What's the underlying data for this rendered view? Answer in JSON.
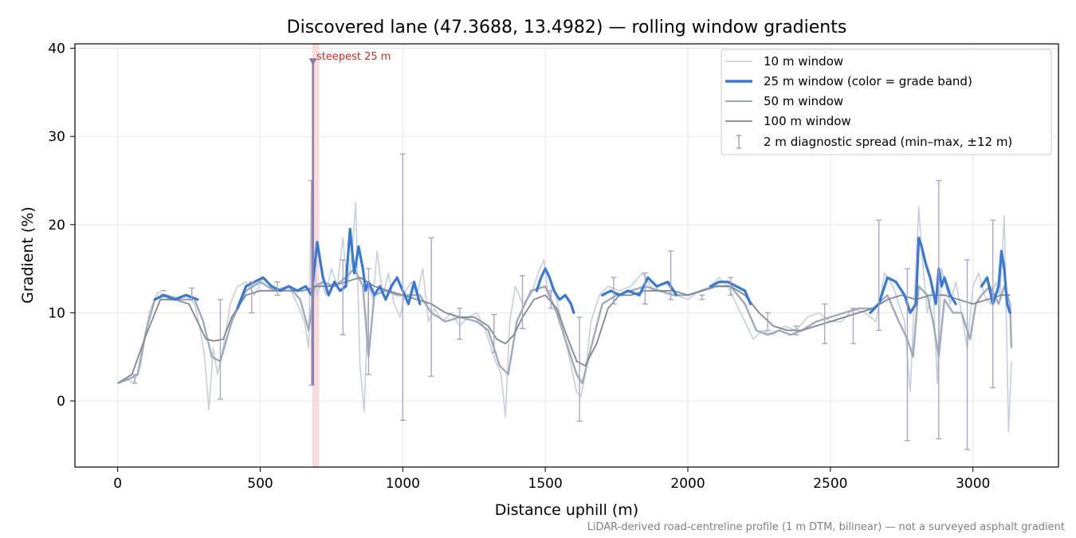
{
  "chart_data": {
    "type": "line",
    "title": "Discovered lane (47.3688, 13.4982) — rolling window gradients",
    "xlabel": "Distance uphill (m)",
    "ylabel": "Gradient (%)",
    "xlim": [
      -150,
      3300
    ],
    "ylim": [
      -7.5,
      40.5
    ],
    "xticks": [
      0,
      500,
      1000,
      1500,
      2000,
      2500,
      3000
    ],
    "yticks": [
      0,
      10,
      20,
      30,
      40
    ],
    "grid": true,
    "legend_position": "upper right",
    "colors": {
      "w10": "#c4cdd8",
      "w25": "#3a78d6",
      "w50": "#9aa7b6",
      "w100": "#7f8891",
      "errorbar": "#a4a0c4",
      "highlight_span": "#f6cfd2",
      "marker": "#8c78ad"
    },
    "series": [
      {
        "name": "10 m window",
        "x": [
          0,
          30,
          55,
          80,
          110,
          140,
          170,
          200,
          240,
          270,
          290,
          305,
          320,
          335,
          350,
          370,
          395,
          420,
          450,
          480,
          510,
          540,
          570,
          600,
          630,
          655,
          670,
          680,
          690,
          700,
          715,
          730,
          750,
          770,
          790,
          805,
          820,
          835,
          850,
          865,
          880,
          895,
          910,
          930,
          950,
          970,
          990,
          1010,
          1030,
          1050,
          1070,
          1090,
          1110,
          1140,
          1170,
          1200,
          1230,
          1260,
          1290,
          1320,
          1345,
          1360,
          1375,
          1395,
          1420,
          1450,
          1475,
          1495,
          1510,
          1530,
          1550,
          1570,
          1590,
          1610,
          1625,
          1640,
          1660,
          1690,
          1720,
          1760,
          1800,
          1840,
          1880,
          1920,
          1960,
          2000,
          2040,
          2080,
          2110,
          2140,
          2170,
          2200,
          2230,
          2260,
          2300,
          2340,
          2380,
          2420,
          2460,
          2500,
          2540,
          2580,
          2620,
          2660,
          2690,
          2720,
          2740,
          2760,
          2780,
          2795,
          2810,
          2820,
          2840,
          2860,
          2875,
          2890,
          2905,
          2920,
          2940,
          2960,
          2980,
          3000,
          3020,
          3040,
          3060,
          3080,
          3095,
          3110,
          3125,
          3135
        ],
        "y": [
          2,
          2.5,
          2,
          4,
          10,
          12.3,
          12,
          11.5,
          12,
          11,
          8,
          5,
          -1,
          6,
          3,
          6,
          11,
          13,
          13.5,
          12,
          14,
          13,
          12.5,
          13,
          11,
          9,
          6,
          25,
          15,
          12,
          13.5,
          12,
          15,
          13,
          18.5,
          13,
          16,
          22.5,
          4,
          -1.2,
          13,
          11.5,
          17,
          12,
          14.5,
          11,
          9.5,
          12.5,
          13.5,
          12,
          15,
          9,
          10.5,
          9,
          10,
          8.5,
          9.5,
          10,
          8,
          5,
          3,
          -1.8,
          9,
          13,
          11,
          12,
          14.5,
          16,
          12,
          13,
          10,
          7,
          4,
          1,
          0.5,
          3,
          9,
          12,
          13,
          12.5,
          13,
          14.5,
          12.5,
          13.5,
          12,
          11.5,
          12.5,
          13,
          14,
          13,
          11,
          9,
          7,
          8,
          7.5,
          8.5,
          8,
          9.5,
          10,
          9,
          9,
          10.5,
          10,
          9,
          14.5,
          13,
          11,
          9,
          1,
          12,
          22,
          17,
          10,
          13,
          2,
          15,
          13,
          11,
          13.5,
          10,
          6,
          13,
          14.5,
          12,
          11,
          13.5,
          12,
          21,
          -3.5,
          4.5
        ]
      },
      {
        "name": "25 m window (color = grade band)",
        "x": [
          130,
          160,
          200,
          240,
          280,
          420,
          450,
          480,
          510,
          540,
          570,
          600,
          630,
          660,
          680,
          690,
          700,
          720,
          740,
          760,
          780,
          800,
          815,
          830,
          845,
          860,
          870,
          880,
          900,
          920,
          940,
          960,
          980,
          1000,
          1020,
          1040,
          1060,
          1470,
          1485,
          1500,
          1515,
          1530,
          1550,
          1570,
          1590,
          1600,
          1700,
          1730,
          1760,
          1790,
          1830,
          1860,
          1890,
          1930,
          1960,
          2080,
          2110,
          2140,
          2170,
          2200,
          2220,
          2640,
          2670,
          2700,
          2730,
          2760,
          2780,
          2800,
          2810,
          2820,
          2835,
          2850,
          2870,
          2880,
          2890,
          2900,
          2920,
          2940,
          3030,
          3050,
          3070,
          3090,
          3100,
          3110,
          3120,
          3130
        ],
        "y": [
          11.5,
          12,
          11.5,
          12,
          11.5,
          10.5,
          13,
          13.5,
          14,
          13,
          12.5,
          13,
          12.5,
          13,
          12,
          15,
          18,
          14,
          12,
          13.5,
          12.5,
          13,
          19.5,
          14.5,
          17.5,
          15,
          12.5,
          13.5,
          12,
          13,
          11.5,
          13,
          14,
          12.5,
          11,
          13.5,
          11,
          12.5,
          14,
          15,
          14,
          12.5,
          11.5,
          12,
          11,
          10,
          12,
          12.5,
          12,
          12.5,
          12,
          14,
          13,
          13.5,
          12,
          13,
          13.5,
          13.5,
          13,
          12.5,
          11,
          10,
          11,
          14,
          13.5,
          12,
          10,
          11,
          18.5,
          17.5,
          15.5,
          14,
          11,
          15,
          13,
          14,
          12,
          11,
          13,
          14,
          11,
          13,
          17,
          15,
          11,
          10
        ]
      },
      {
        "name": "50 m window",
        "x": [
          0,
          40,
          70,
          100,
          130,
          170,
          220,
          270,
          300,
          330,
          360,
          400,
          450,
          500,
          550,
          600,
          640,
          670,
          690,
          720,
          760,
          800,
          830,
          860,
          880,
          900,
          940,
          980,
          1020,
          1060,
          1100,
          1150,
          1200,
          1260,
          1300,
          1340,
          1370,
          1400,
          1450,
          1500,
          1540,
          1580,
          1610,
          1630,
          1660,
          1700,
          1750,
          1800,
          1850,
          1900,
          1950,
          2000,
          2050,
          2100,
          2150,
          2200,
          2240,
          2280,
          2320,
          2360,
          2400,
          2450,
          2500,
          2550,
          2600,
          2650,
          2700,
          2740,
          2770,
          2790,
          2810,
          2840,
          2860,
          2880,
          2900,
          2930,
          2960,
          2990,
          3010,
          3030,
          3060,
          3090,
          3110,
          3130,
          3135
        ],
        "y": [
          2,
          2.5,
          3,
          8,
          11.5,
          12,
          11.5,
          11.5,
          9,
          5,
          4.5,
          9,
          12.5,
          13.5,
          12.5,
          13,
          11.5,
          8,
          13,
          13.5,
          13,
          14,
          15,
          13,
          5,
          12,
          12.5,
          12,
          12,
          12,
          10,
          9,
          9.5,
          9,
          8,
          4,
          3,
          9,
          12.5,
          13,
          10,
          6,
          3,
          2,
          6,
          11,
          12,
          12.5,
          13,
          12.5,
          12,
          12,
          12.5,
          13,
          13,
          11,
          8,
          7.5,
          8,
          7.5,
          8,
          9,
          9.5,
          10,
          10.5,
          10.5,
          12,
          9,
          7,
          5,
          13,
          12,
          9,
          5,
          11.5,
          10,
          10,
          7,
          11,
          12,
          13,
          11,
          13,
          11,
          6
        ]
      },
      {
        "name": "100 m window",
        "x": [
          0,
          50,
          100,
          150,
          200,
          250,
          280,
          310,
          340,
          370,
          400,
          450,
          500,
          550,
          600,
          650,
          700,
          750,
          800,
          850,
          900,
          950,
          1000,
          1050,
          1100,
          1150,
          1200,
          1250,
          1300,
          1330,
          1360,
          1390,
          1420,
          1460,
          1500,
          1540,
          1580,
          1610,
          1640,
          1680,
          1720,
          1760,
          1800,
          1850,
          1900,
          1950,
          2000,
          2050,
          2100,
          2150,
          2200,
          2250,
          2300,
          2350,
          2400,
          2450,
          2500,
          2550,
          2600,
          2650,
          2700,
          2750,
          2800,
          2850,
          2900,
          2950,
          3000,
          3050,
          3100,
          3130
        ],
        "y": [
          2,
          3,
          7.5,
          11.5,
          11.5,
          11,
          9,
          7,
          6.8,
          7,
          9.5,
          12,
          12.5,
          12.5,
          12.5,
          12.5,
          13,
          13,
          13.5,
          14,
          13,
          12.5,
          12,
          11.5,
          11,
          10,
          9.5,
          9.5,
          8.5,
          7,
          6.5,
          7.5,
          9.5,
          11.5,
          12,
          10.5,
          7,
          4.5,
          4,
          6.5,
          10.5,
          12,
          12,
          12.5,
          12.5,
          12.5,
          12,
          12.5,
          13,
          13,
          12,
          10,
          8.5,
          8,
          8,
          8.5,
          9,
          9.5,
          10,
          10.5,
          11.5,
          12,
          11.5,
          12,
          12,
          11.5,
          11,
          11.5,
          12,
          12
        ]
      }
    ],
    "errorbars": {
      "name": "2 m diagnostic spread (min–max, ±12 m)",
      "x": [
        60,
        160,
        260,
        360,
        470,
        560,
        680,
        790,
        880,
        1000,
        1100,
        1200,
        1320,
        1420,
        1520,
        1620,
        1740,
        1850,
        1940,
        2050,
        2150,
        2280,
        2380,
        2480,
        2580,
        2670,
        2770,
        2880,
        2980,
        3070
      ],
      "low": [
        2,
        12.5,
        11.5,
        0.2,
        10,
        12,
        1.8,
        7.5,
        3,
        -2.2,
        2.8,
        7,
        5.5,
        8.2,
        10.5,
        -2.3,
        11,
        11,
        11.5,
        11.5,
        12,
        8,
        7.5,
        6.5,
        6.5,
        8,
        -4.5,
        -4.3,
        -5.5,
        1.5
      ],
      "high": [
        3,
        12.5,
        12.8,
        11.5,
        13.5,
        13.5,
        25,
        16,
        15,
        28,
        18.5,
        10.5,
        9.8,
        14.2,
        12.5,
        9.5,
        14,
        14.5,
        17,
        12,
        14,
        10,
        8.5,
        11,
        10.5,
        20.5,
        15,
        25,
        16,
        20.5
      ]
    },
    "highlight": {
      "label": "steepest 25 m",
      "x_start": 682,
      "x_end": 707,
      "marker_x": 685,
      "marker_y": 38.5,
      "line_bottom": 1.8
    },
    "footnote": "LiDAR-derived road-centreline profile (1 m DTM, bilinear) — not a surveyed asphalt gradient"
  }
}
